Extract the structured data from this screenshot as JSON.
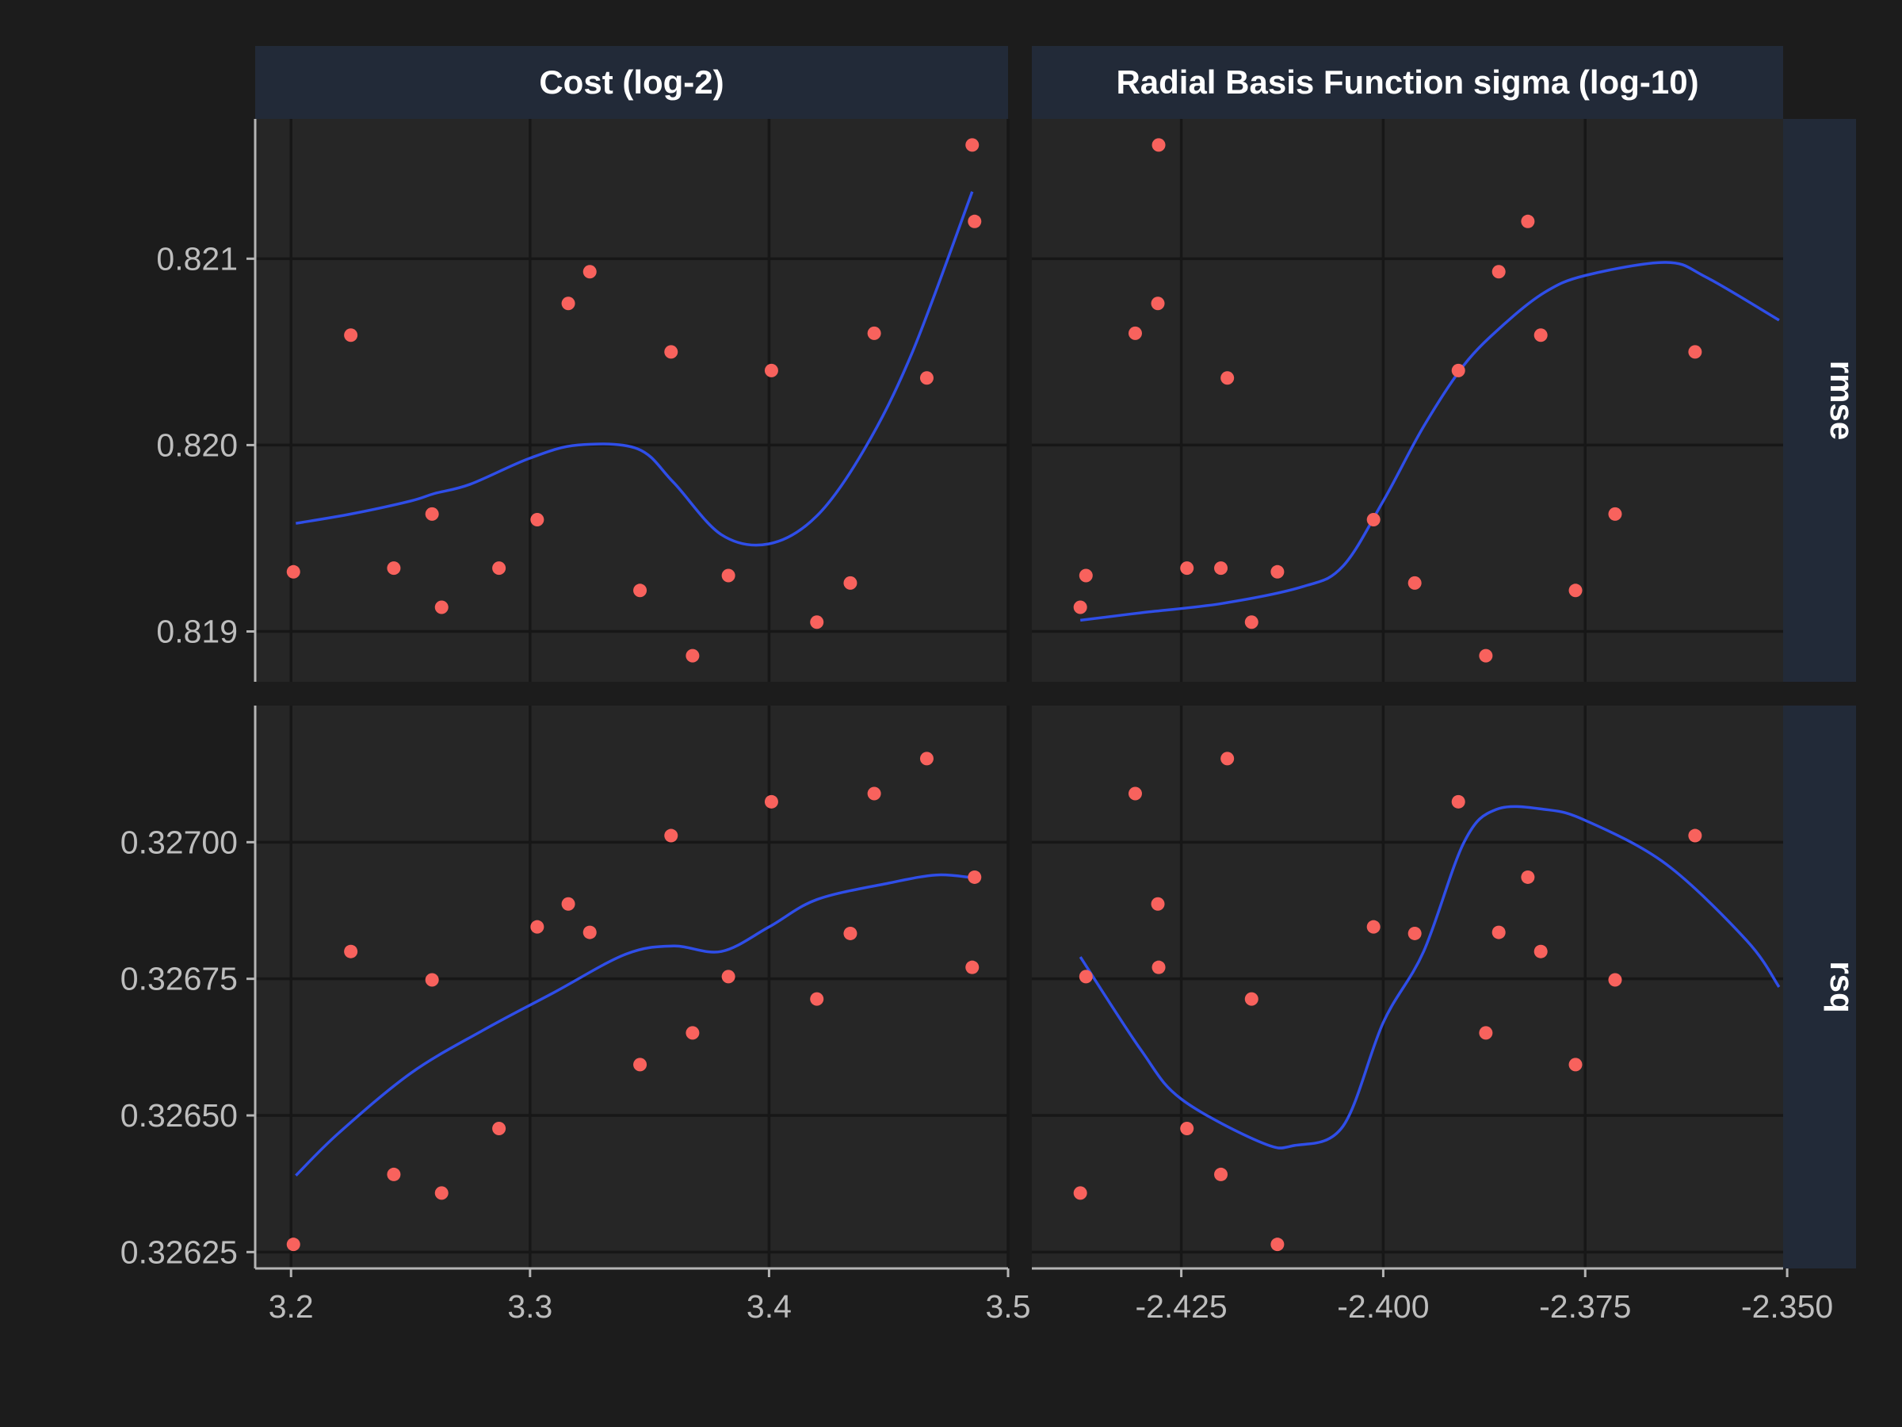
{
  "chart_data": {
    "type": "scatter",
    "facet_columns": [
      "Cost (log-2)",
      "Radial Basis Function sigma (log-10)"
    ],
    "facet_rows": [
      "rmse",
      "rsq"
    ],
    "grid": true,
    "smoother": true,
    "colors": {
      "points": "#f8625d",
      "smooth": "#2f4ee8",
      "panel": "#262626",
      "strip": "#222a38",
      "background": "#1c1c1c"
    },
    "x_axes": [
      {
        "range": [
          3.185,
          3.5
        ],
        "ticks": [
          3.2,
          3.3,
          3.4,
          3.5
        ],
        "tick_labels": [
          "3.2",
          "3.3",
          "3.4",
          "3.5"
        ]
      },
      {
        "range": [
          -2.4435,
          -2.3505
        ],
        "ticks": [
          -2.425,
          -2.4,
          -2.375,
          -2.35
        ],
        "tick_labels": [
          "-2.425",
          "-2.400",
          "-2.375",
          "-2.350"
        ]
      }
    ],
    "y_axes": [
      {
        "range": [
          0.81873,
          0.82175
        ],
        "ticks": [
          0.819,
          0.82,
          0.821
        ],
        "tick_labels": [
          "0.819",
          "0.820",
          "0.821"
        ]
      },
      {
        "range": [
          0.32622,
          0.32725
        ],
        "ticks": [
          0.32625,
          0.3265,
          0.32675,
          0.327
        ],
        "tick_labels": [
          "0.32625",
          "0.32650",
          "0.32675",
          "0.32700"
        ]
      }
    ],
    "x_cost": [
      3.201,
      3.225,
      3.243,
      3.259,
      3.263,
      3.287,
      3.303,
      3.316,
      3.325,
      3.346,
      3.359,
      3.368,
      3.383,
      3.401,
      3.42,
      3.434,
      3.444,
      3.466,
      3.485,
      3.486
    ],
    "x_sigma": [
      -2.4131,
      -2.3805,
      -2.4201,
      -2.3713,
      -2.4375,
      -2.4243,
      -2.4012,
      -2.4279,
      -2.3857,
      -2.3762,
      -2.3614,
      -2.3873,
      -2.4368,
      -2.3907,
      -2.4163,
      -2.3961,
      -2.4307,
      -2.4193,
      -2.4278,
      -2.3821
    ],
    "rmse": [
      0.81932,
      0.82059,
      0.81934,
      0.81963,
      0.81913,
      0.81934,
      0.8196,
      0.82076,
      0.82093,
      0.81922,
      0.8205,
      0.81887,
      0.8193,
      0.8204,
      0.81905,
      0.81926,
      0.8206,
      0.82036,
      0.82161,
      0.8212
    ],
    "rsq": [
      0.326264,
      0.3268,
      0.326392,
      0.326748,
      0.326358,
      0.326476,
      0.326845,
      0.326887,
      0.326835,
      0.326593,
      0.327012,
      0.326651,
      0.326754,
      0.327074,
      0.326713,
      0.326833,
      0.327089,
      0.327153,
      0.326771,
      0.326936
    ],
    "smooth": {
      "cost_rmse": [
        [
          3.202,
          0.81958
        ],
        [
          3.225,
          0.81963
        ],
        [
          3.25,
          0.8197
        ],
        [
          3.26,
          0.81974
        ],
        [
          3.275,
          0.81979
        ],
        [
          3.3,
          0.81993
        ],
        [
          3.32,
          0.82
        ],
        [
          3.345,
          0.81998
        ],
        [
          3.36,
          0.8198
        ],
        [
          3.38,
          0.81952
        ],
        [
          3.4,
          0.81947
        ],
        [
          3.42,
          0.81962
        ],
        [
          3.44,
          0.81998
        ],
        [
          3.46,
          0.8205
        ],
        [
          3.485,
          0.82136
        ]
      ],
      "sigma_rmse": [
        [
          -2.4375,
          0.81906
        ],
        [
          -2.43,
          0.8191
        ],
        [
          -2.42,
          0.81915
        ],
        [
          -2.41,
          0.81924
        ],
        [
          -2.405,
          0.81935
        ],
        [
          -2.4,
          0.8197
        ],
        [
          -2.395,
          0.8201
        ],
        [
          -2.39,
          0.82043
        ],
        [
          -2.385,
          0.82065
        ],
        [
          -2.38,
          0.82082
        ],
        [
          -2.375,
          0.82091
        ],
        [
          -2.365,
          0.82098
        ],
        [
          -2.36,
          0.8209
        ],
        [
          -2.351,
          0.82067
        ]
      ],
      "cost_rsq": [
        [
          3.202,
          0.32639
        ],
        [
          3.22,
          0.326468
        ],
        [
          3.25,
          0.326577
        ],
        [
          3.28,
          0.326655
        ],
        [
          3.31,
          0.326725
        ],
        [
          3.34,
          0.326795
        ],
        [
          3.36,
          0.32681
        ],
        [
          3.38,
          0.3268
        ],
        [
          3.4,
          0.326845
        ],
        [
          3.42,
          0.326895
        ],
        [
          3.45,
          0.326925
        ],
        [
          3.47,
          0.32694
        ],
        [
          3.485,
          0.326935
        ]
      ],
      "sigma_rsq": [
        [
          -2.4375,
          0.32679
        ],
        [
          -2.43,
          0.32662
        ],
        [
          -2.425,
          0.32653
        ],
        [
          -2.415,
          0.32645
        ],
        [
          -2.411,
          0.326445
        ],
        [
          -2.405,
          0.32648
        ],
        [
          -2.4,
          0.32667
        ],
        [
          -2.395,
          0.3268
        ],
        [
          -2.39,
          0.327
        ],
        [
          -2.386,
          0.32706
        ],
        [
          -2.38,
          0.32706
        ],
        [
          -2.375,
          0.32704
        ],
        [
          -2.365,
          0.32696
        ],
        [
          -2.355,
          0.32682
        ],
        [
          -2.351,
          0.326735
        ]
      ]
    }
  }
}
